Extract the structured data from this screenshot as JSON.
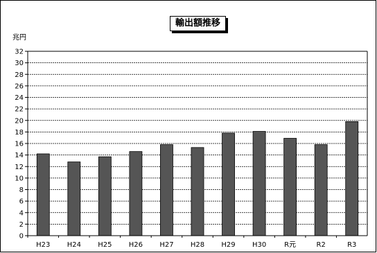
{
  "chart_data": {
    "type": "bar",
    "title": "輸出額推移",
    "ylabel": "兆円",
    "categories": [
      "H23",
      "H24",
      "H25",
      "H26",
      "H27",
      "H28",
      "H29",
      "H30",
      "R元",
      "R2",
      "R3"
    ],
    "values": [
      14.2,
      12.8,
      13.7,
      14.6,
      15.8,
      15.3,
      17.8,
      18.1,
      16.9,
      15.8,
      19.8
    ],
    "ylim": [
      0,
      32
    ],
    "ytick_step": 2,
    "grid": true,
    "bar_color": "#555555",
    "grid_color": "#000000"
  }
}
